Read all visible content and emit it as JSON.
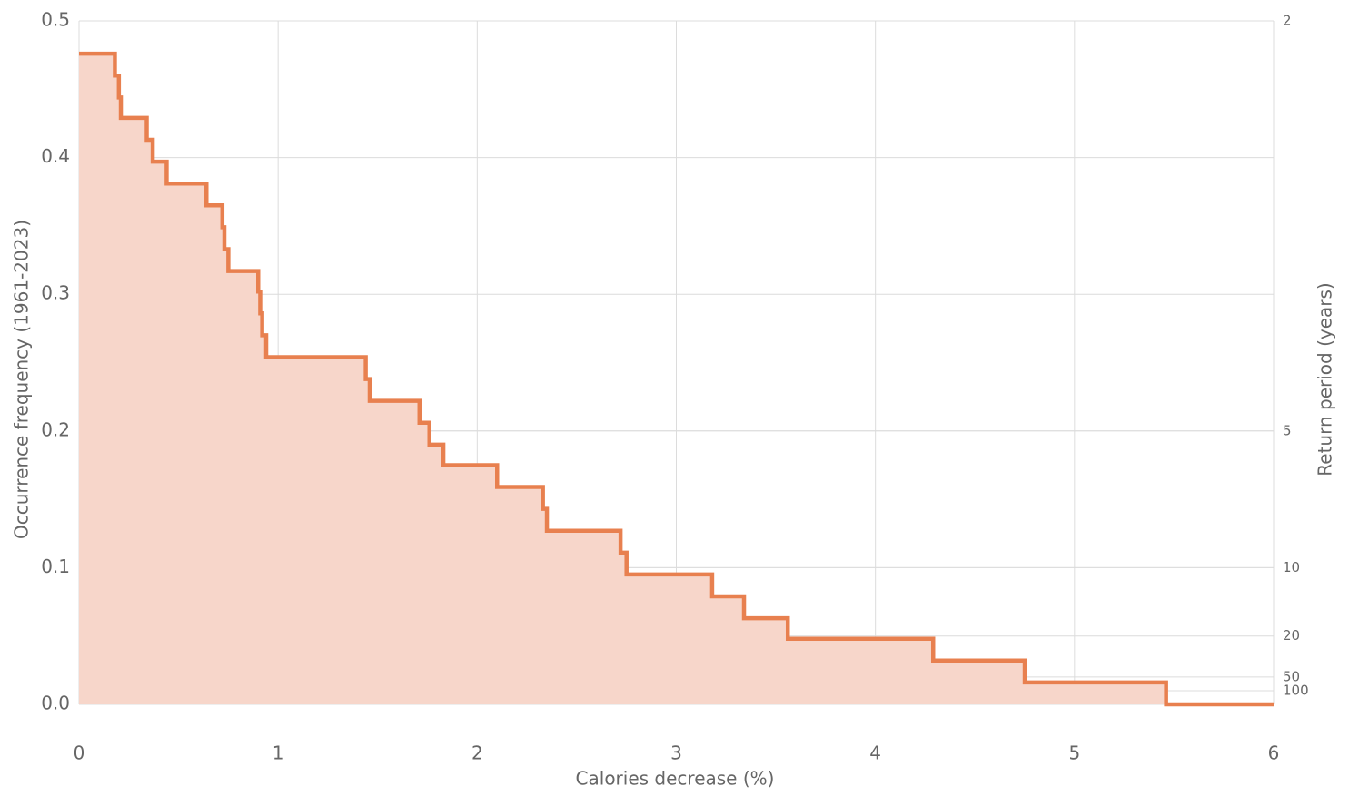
{
  "chart_data": {
    "type": "step",
    "xlabel": "Calories decrease (%)",
    "ylabel": "Occurrence frequency (1961-2023)",
    "y2label": "Return period (years)",
    "x": [
      0,
      0.18,
      0.2,
      0.21,
      0.34,
      0.37,
      0.44,
      0.64,
      0.72,
      0.73,
      0.75,
      0.9,
      0.91,
      0.92,
      0.94,
      1.44,
      1.46,
      1.71,
      1.76,
      1.83,
      2.1,
      2.33,
      2.35,
      2.72,
      2.75,
      3.18,
      3.34,
      3.56,
      4.29,
      4.75,
      5.46,
      6
    ],
    "series": [
      {
        "name": "Occurrence frequency",
        "color": "#e8804f",
        "fill": "#f7d6ca",
        "values": [
          0.476,
          0.46,
          0.444,
          0.429,
          0.413,
          0.397,
          0.381,
          0.365,
          0.349,
          0.333,
          0.317,
          0.302,
          0.286,
          0.27,
          0.254,
          0.238,
          0.222,
          0.206,
          0.19,
          0.175,
          0.159,
          0.143,
          0.127,
          0.111,
          0.095,
          0.079,
          0.063,
          0.048,
          0.032,
          0.016,
          0,
          0
        ]
      }
    ],
    "xlim": [
      0,
      6
    ],
    "xticks": [
      0,
      1,
      2,
      3,
      4,
      5,
      6
    ],
    "ylim": [
      0,
      0.5
    ],
    "yticks": [
      {
        "value": 0,
        "label": "0.0"
      },
      0.1,
      0.2,
      0.3,
      0.4,
      0.5
    ],
    "y2scale": "reciprocal",
    "y2ticks": [
      2,
      5,
      10,
      20,
      50,
      100
    ],
    "grid": true
  }
}
